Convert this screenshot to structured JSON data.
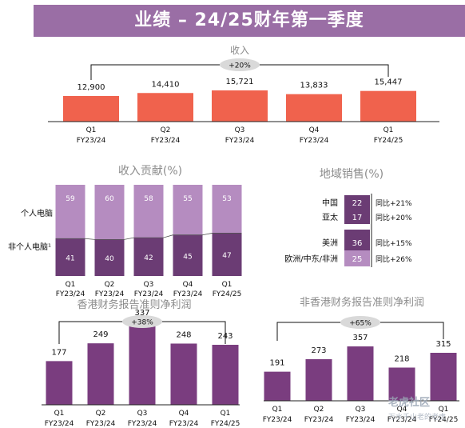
{
  "header": {
    "title": "业绩 – 24/25财年第一季度"
  },
  "colors": {
    "banner": "#9a6ea5",
    "revenue_bar": "#f0624d",
    "dark_purple": "#6b3c74",
    "light_purple": "#b58cc0",
    "profit_bar": "#7a3d7f",
    "badge": "#d9d9d9",
    "title_gray": "#8c8c8c"
  },
  "watermark": {
    "text": "老虎社区",
    "sub": "万水千山老的老虎"
  },
  "chart_data": [
    {
      "id": "revenue",
      "type": "bar",
      "title": "收入",
      "badge": "+20%",
      "categories": [
        [
          "Q1",
          "FY23/24"
        ],
        [
          "Q2",
          "FY23/24"
        ],
        [
          "Q3",
          "FY23/24"
        ],
        [
          "Q4",
          "FY23/24"
        ],
        [
          "Q1",
          "FY24/25"
        ]
      ],
      "values": [
        12900,
        14410,
        15721,
        13833,
        15447
      ],
      "value_labels": [
        "12,900",
        "14,410",
        "15,721",
        "13,833",
        "15,447"
      ]
    },
    {
      "id": "revenue_mix",
      "type": "bar",
      "stacked": true,
      "title": "收入贡献(%)",
      "categories": [
        [
          "Q1",
          "FY23/24"
        ],
        [
          "Q2",
          "FY23/24"
        ],
        [
          "Q3",
          "FY23/24"
        ],
        [
          "Q4",
          "FY23/24"
        ],
        [
          "Q1",
          "FY24/25"
        ]
      ],
      "series": [
        {
          "name": "非个人电脑",
          "label": "非个人电脑¹",
          "values": [
            41,
            40,
            42,
            45,
            47
          ]
        },
        {
          "name": "个人电脑",
          "label": "个人电脑",
          "values": [
            59,
            60,
            58,
            55,
            53
          ]
        }
      ]
    },
    {
      "id": "regional",
      "type": "table",
      "title": "地域销售(%)",
      "rows": [
        {
          "region": "中国",
          "value": 22,
          "yoy": "同比+21%"
        },
        {
          "region": "亚太",
          "value": 17,
          "yoy": "同比+20%"
        },
        {
          "region": "美洲",
          "value": 36,
          "yoy": "同比+15%"
        },
        {
          "region": "欧洲/中东/非洲",
          "value": 25,
          "yoy": "同比+26%"
        }
      ]
    },
    {
      "id": "hkfrs_net_income",
      "type": "bar",
      "title": "香港财务报告准则净利润",
      "badge": "+38%",
      "categories": [
        [
          "Q1",
          "FY23/24"
        ],
        [
          "Q2",
          "FY23/24"
        ],
        [
          "Q3",
          "FY23/24"
        ],
        [
          "Q4",
          "FY23/24"
        ],
        [
          "Q1",
          "FY24/25"
        ]
      ],
      "values": [
        177,
        249,
        337,
        248,
        243
      ]
    },
    {
      "id": "non_hkfrs_net_income",
      "type": "bar",
      "title": "非香港财务报告准则净利润",
      "badge": "+65%",
      "categories": [
        [
          "Q1",
          "FY23/24"
        ],
        [
          "Q2",
          "FY23/24"
        ],
        [
          "Q3",
          "FY23/24"
        ],
        [
          "Q4",
          "FY23/24"
        ],
        [
          "Q1",
          "FY24/25"
        ]
      ],
      "values": [
        191,
        273,
        357,
        218,
        315
      ]
    }
  ]
}
